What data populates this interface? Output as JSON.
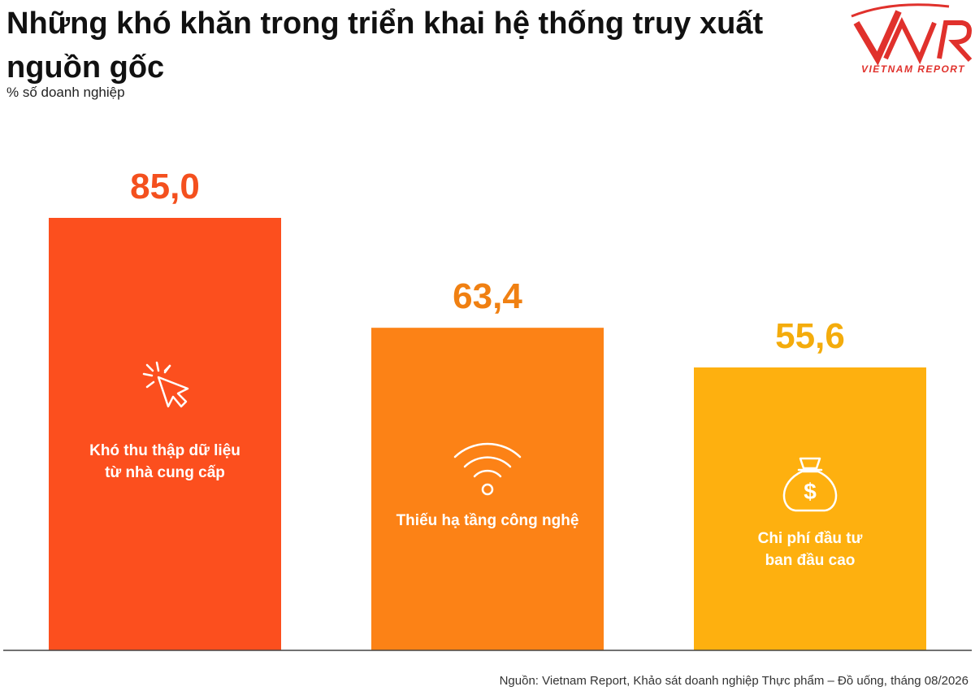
{
  "header": {
    "title": "Những khó khăn trong triển khai hệ thống truy xuất nguồn gốc",
    "subtitle": "% số doanh nghiệp"
  },
  "logo": {
    "text": "VIETNAM REPORT",
    "color": "#e0312c"
  },
  "footer": {
    "source": "Nguồn: Vietnam Report, Khảo sát doanh nghiệp Thực phẩm – Đồ uống, tháng 08/2026"
  },
  "chart_data": {
    "type": "bar",
    "title": "Những khó khăn trong triển khai hệ thống truy xuất nguồn gốc",
    "ylabel": "% số doanh nghiệp",
    "xlabel": "",
    "ylim": [
      0,
      100
    ],
    "grid": false,
    "categories": [
      [
        "Khó thu thập dữ liệu",
        "từ nhà cung cấp"
      ],
      [
        "Thiếu hạ tầng công nghệ"
      ],
      [
        "Chi phí đầu tư",
        "ban đầu cao"
      ]
    ],
    "values": [
      85.0,
      63.4,
      55.6
    ],
    "value_labels": [
      "85,0",
      "63,4",
      "55,6"
    ],
    "colors": [
      "#fc4f1e",
      "#fc8216",
      "#feb00f"
    ],
    "value_label_colors": [
      "#f4501e",
      "#f08012",
      "#f4ac0c"
    ],
    "icons": [
      "cursor-click-icon",
      "wifi-icon",
      "money-bag-icon"
    ]
  }
}
